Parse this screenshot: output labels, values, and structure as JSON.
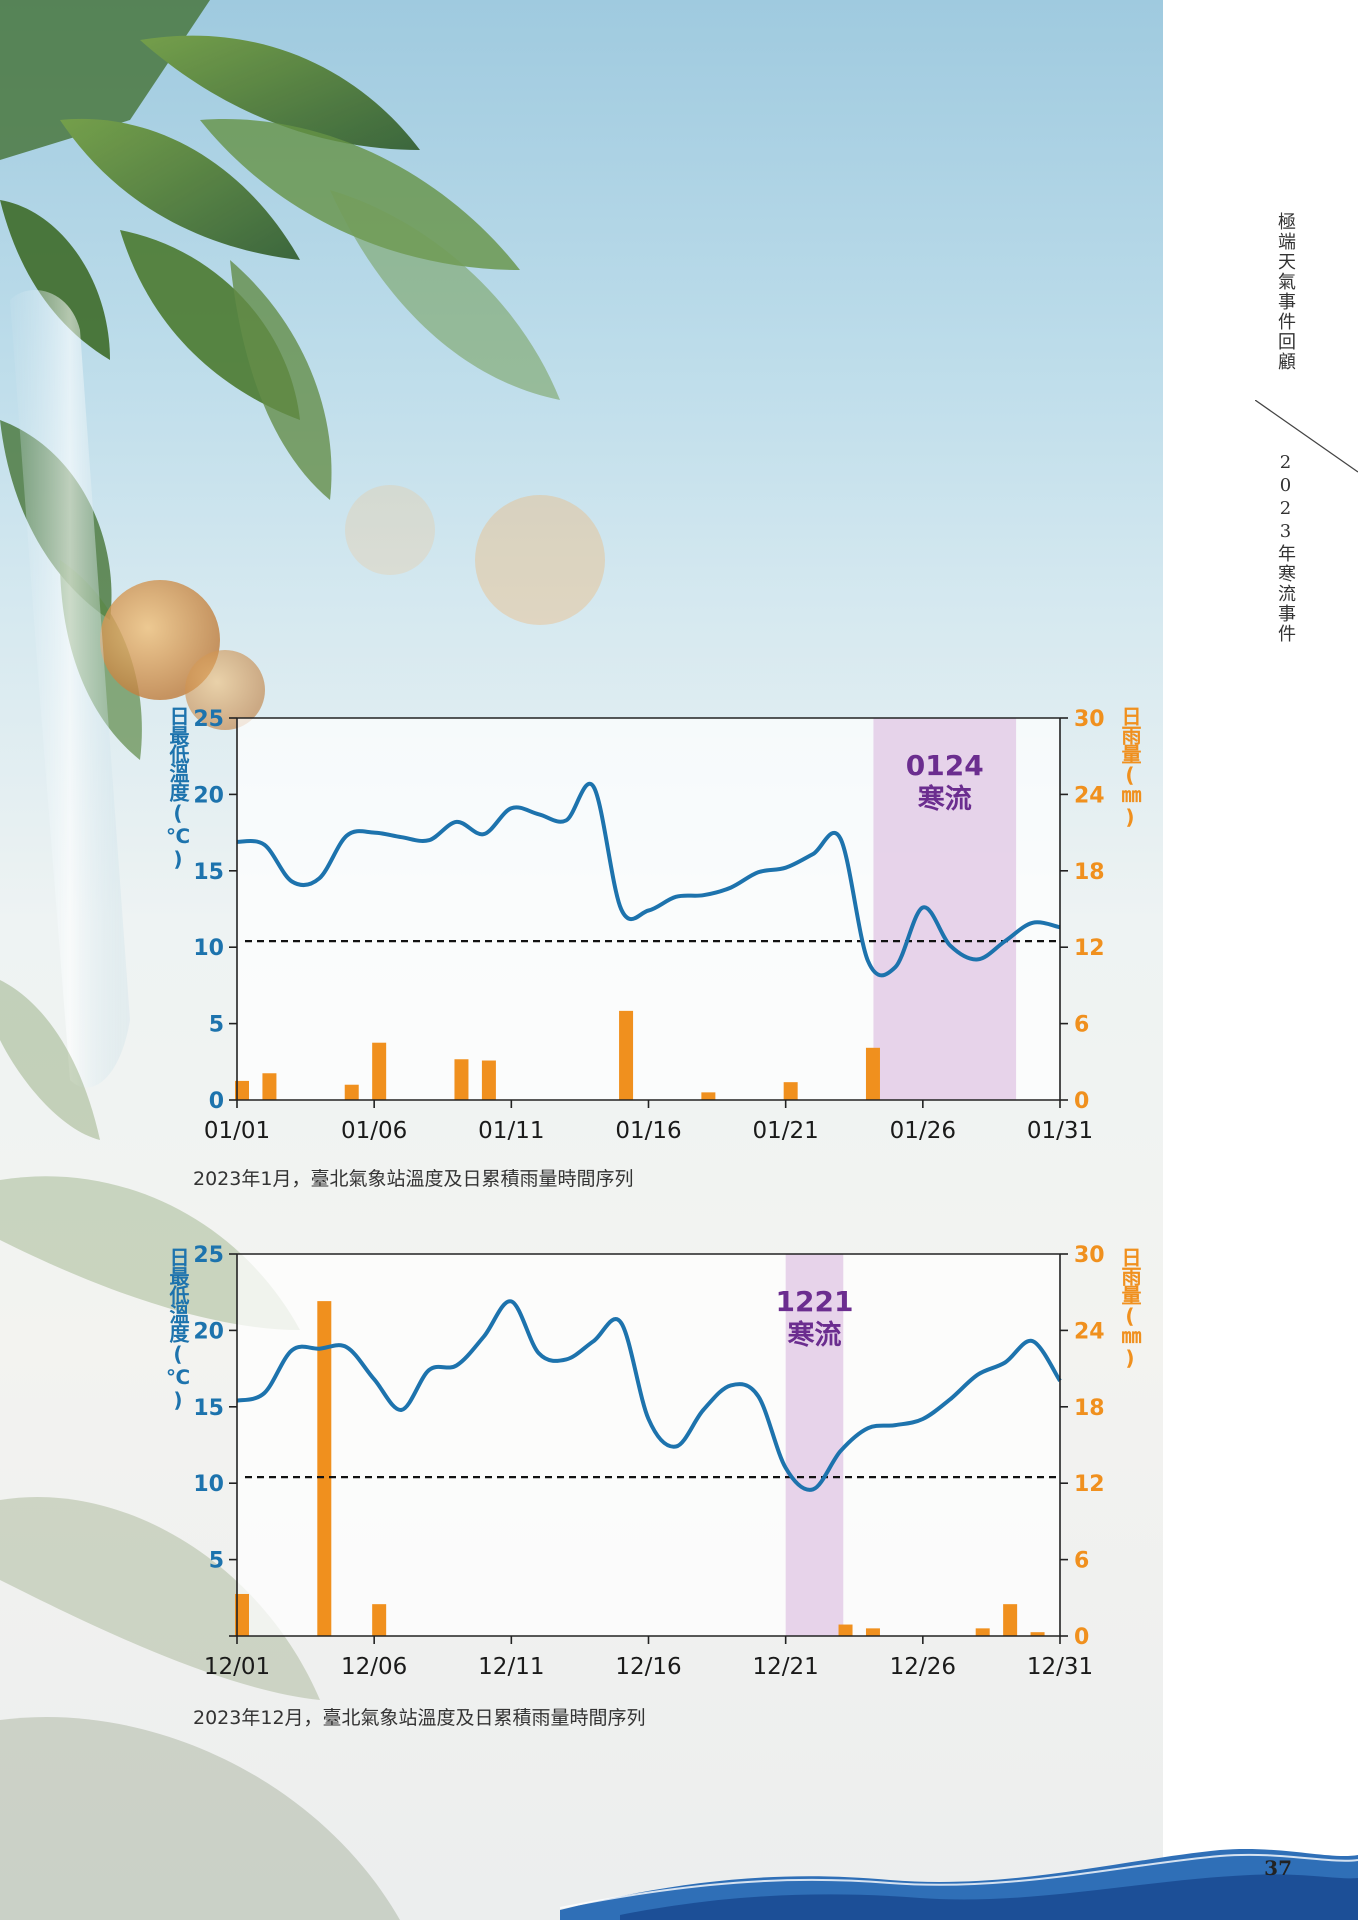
{
  "side_header": {
    "title": "極端天氣事件回顧",
    "subtitle": "2023年寒流事件"
  },
  "page_number": "37",
  "colors": {
    "temperature_line": "#1d73ad",
    "rain_bars": "#f0901e",
    "cold_wave_band": "#e3cbe6",
    "cold_wave_text": "#6b2d8f",
    "threshold_line": "#111111"
  },
  "chart_data": [
    {
      "type": "bar+line",
      "title": "",
      "caption": "2023年1月，臺北氣象站溫度及日累積雨量時間序列",
      "ylabel_left": "日最低溫度(℃)",
      "ylabel_right": "日雨量(㎜)",
      "ylim_left": [
        0,
        25
      ],
      "ylim_right": [
        0,
        30
      ],
      "yticks_left": [
        "0",
        "5",
        "10",
        "15",
        "20",
        "25"
      ],
      "yticks_right": [
        "0",
        "6",
        "12",
        "18",
        "24",
        "30"
      ],
      "x_start": "01/01",
      "xlim": [
        1,
        31
      ],
      "xticks": [
        {
          "day": 1,
          "label": "01/01"
        },
        {
          "day": 6,
          "label": "01/06"
        },
        {
          "day": 11,
          "label": "01/11"
        },
        {
          "day": 16,
          "label": "01/16"
        },
        {
          "day": 21,
          "label": "01/21"
        },
        {
          "day": 26,
          "label": "01/26"
        },
        {
          "day": 31,
          "label": "01/31"
        }
      ],
      "threshold_temp": 10.4,
      "cold_wave": {
        "label_line1": "0124",
        "label_line2": "寒流",
        "start_day": 24.2,
        "end_day": 29.4
      },
      "temperature": [
        [
          1,
          16.9
        ],
        [
          2,
          16.7
        ],
        [
          3,
          14.3
        ],
        [
          4,
          14.5
        ],
        [
          5,
          17.3
        ],
        [
          6,
          17.5
        ],
        [
          7,
          17.2
        ],
        [
          8,
          17.0
        ],
        [
          9,
          18.2
        ],
        [
          10,
          17.4
        ],
        [
          11,
          19.1
        ],
        [
          12,
          18.7
        ],
        [
          13,
          18.3
        ],
        [
          14,
          20.5
        ],
        [
          15,
          12.5
        ],
        [
          16,
          12.4
        ],
        [
          17,
          13.3
        ],
        [
          18,
          13.4
        ],
        [
          19,
          13.9
        ],
        [
          20,
          14.9
        ],
        [
          21,
          15.2
        ],
        [
          22,
          16.1
        ],
        [
          23,
          17.1
        ],
        [
          24,
          9.1
        ],
        [
          25,
          8.7
        ],
        [
          26,
          12.6
        ],
        [
          27,
          10.1
        ],
        [
          28,
          9.2
        ],
        [
          29,
          10.4
        ],
        [
          30,
          11.6
        ],
        [
          31,
          11.3
        ]
      ],
      "rainfall": [
        [
          1,
          1.5
        ],
        [
          2,
          2.1
        ],
        [
          5,
          1.2
        ],
        [
          6,
          4.5
        ],
        [
          9,
          3.2
        ],
        [
          10,
          3.1
        ],
        [
          15,
          7.0
        ],
        [
          18,
          0.6
        ],
        [
          21,
          1.4
        ],
        [
          24,
          4.1
        ]
      ]
    },
    {
      "type": "bar+line",
      "title": "",
      "caption": "2023年12月，臺北氣象站溫度及日累積雨量時間序列",
      "ylabel_left": "日最低溫度(℃)",
      "ylabel_right": "日雨量(㎜)",
      "ylim_left": [
        0,
        25
      ],
      "ylim_right": [
        0,
        30
      ],
      "yticks_left": [
        "",
        "5",
        "10",
        "15",
        "20",
        "25"
      ],
      "yticks_right": [
        "0",
        "6",
        "12",
        "18",
        "24",
        "30"
      ],
      "x_start": "12/01",
      "xlim": [
        1,
        31
      ],
      "xticks": [
        {
          "day": 1,
          "label": "12/01"
        },
        {
          "day": 6,
          "label": "12/06"
        },
        {
          "day": 11,
          "label": "12/11"
        },
        {
          "day": 16,
          "label": "12/16"
        },
        {
          "day": 21,
          "label": "12/21"
        },
        {
          "day": 26,
          "label": "12/26"
        },
        {
          "day": 31,
          "label": "12/31"
        }
      ],
      "threshold_temp": 10.4,
      "cold_wave": {
        "label_line1": "1221",
        "label_line2": "寒流",
        "start_day": 21.0,
        "end_day": 23.1
      },
      "temperature": [
        [
          1,
          15.4
        ],
        [
          2,
          15.9
        ],
        [
          3,
          18.7
        ],
        [
          4,
          18.8
        ],
        [
          5,
          18.9
        ],
        [
          6,
          16.8
        ],
        [
          7,
          14.8
        ],
        [
          8,
          17.4
        ],
        [
          9,
          17.7
        ],
        [
          10,
          19.6
        ],
        [
          11,
          21.9
        ],
        [
          12,
          18.5
        ],
        [
          13,
          18.1
        ],
        [
          14,
          19.3
        ],
        [
          15,
          20.5
        ],
        [
          16,
          14.2
        ],
        [
          17,
          12.4
        ],
        [
          18,
          14.8
        ],
        [
          19,
          16.4
        ],
        [
          20,
          15.7
        ],
        [
          21,
          11.0
        ],
        [
          22,
          9.6
        ],
        [
          23,
          12.1
        ],
        [
          24,
          13.6
        ],
        [
          25,
          13.8
        ],
        [
          26,
          14.2
        ],
        [
          27,
          15.5
        ],
        [
          28,
          17.1
        ],
        [
          29,
          17.9
        ],
        [
          30,
          19.3
        ],
        [
          31,
          16.7
        ]
      ],
      "rainfall": [
        [
          1,
          3.3
        ],
        [
          4,
          26.3
        ],
        [
          6,
          2.5
        ],
        [
          23,
          0.9
        ],
        [
          24,
          0.6
        ],
        [
          28,
          0.6
        ],
        [
          29,
          2.5
        ],
        [
          30,
          0.3
        ]
      ]
    }
  ]
}
